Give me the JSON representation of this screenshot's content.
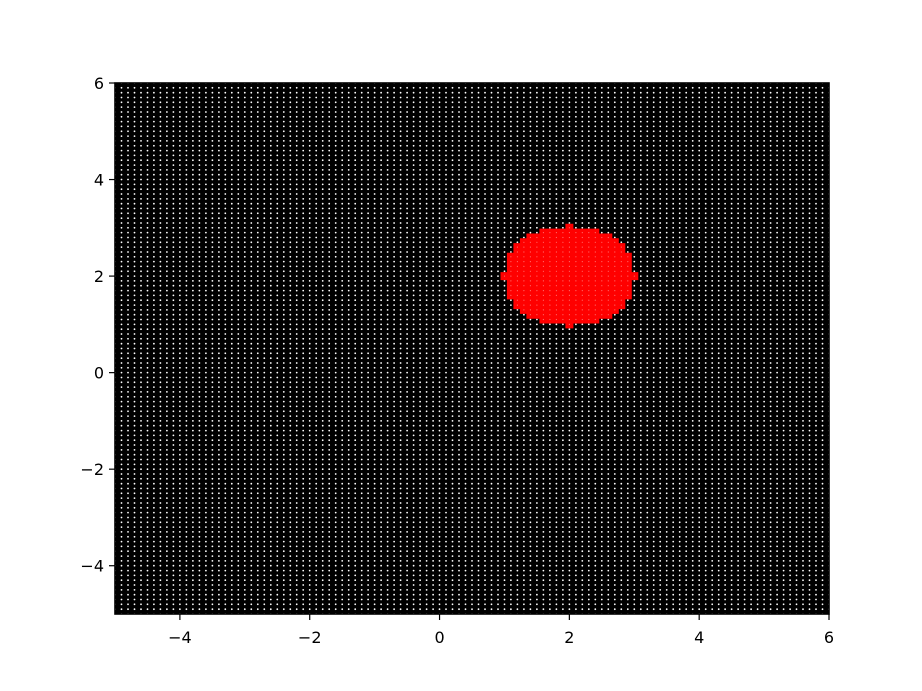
{
  "chart_data": {
    "type": "scatter",
    "title": "",
    "xlabel": "",
    "ylabel": "",
    "xlim": [
      -5,
      6
    ],
    "ylim": [
      -5,
      6
    ],
    "grid": false,
    "legend": "none",
    "xticks": [
      -4,
      -2,
      0,
      2,
      4,
      6
    ],
    "yticks": [
      -4,
      -2,
      0,
      2,
      4,
      6
    ],
    "xtick_labels": [
      "−4",
      "−2",
      "0",
      "2",
      "4",
      "6"
    ],
    "ytick_labels": [
      "−4",
      "−2",
      "0",
      "2",
      "4",
      "6"
    ],
    "grid_points": {
      "x_start": -5,
      "x_end": 6,
      "x_step": 0.1,
      "y_start": -5,
      "y_end": 6,
      "y_step": 0.1
    },
    "background_color": "#000000",
    "series": [
      {
        "color": "#ffffff",
        "marker": "point",
        "points": "all grid points outside the disk"
      },
      {
        "color": "#ff0000",
        "marker": "point",
        "points": "grid points with (x-2)^2 + (y-2)^2 <= 1",
        "center": [
          2,
          2
        ],
        "radius": 1
      }
    ]
  }
}
